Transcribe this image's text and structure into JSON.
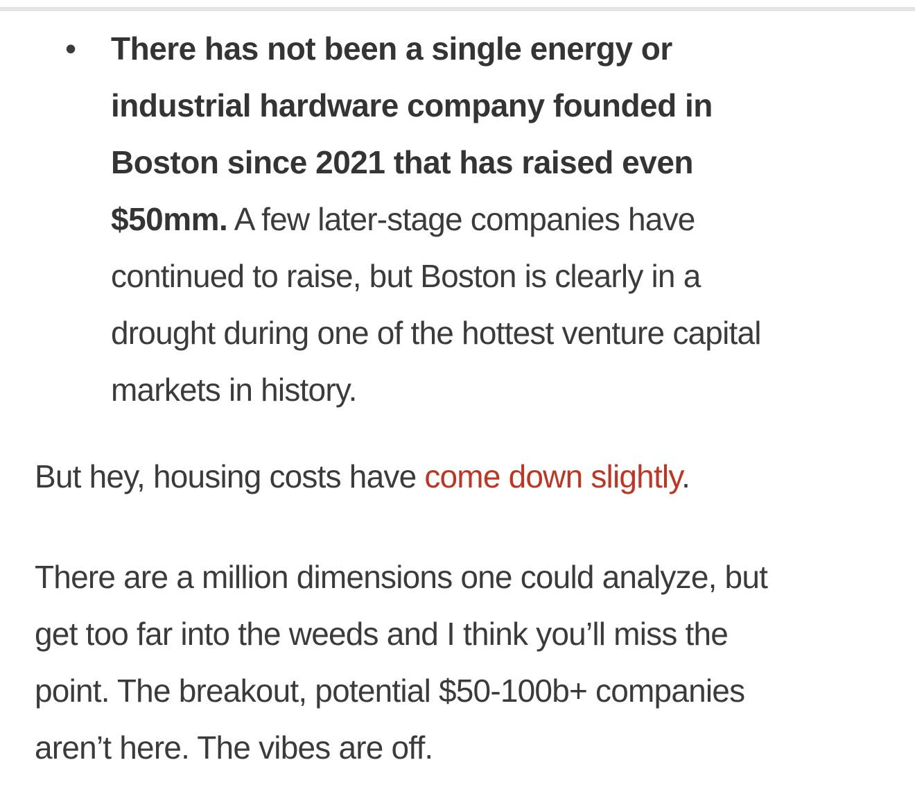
{
  "page": {
    "background_color": "#ffffff",
    "divider_color": "#e5e5e5",
    "text_color": "#3b3b3b",
    "link_color": "#c03522"
  },
  "bullet_item": {
    "marker": "•",
    "bold_lines": [
      "There has not been a single energy or",
      "industrial hardware company founded in",
      "Boston since 2021 that has raised even",
      "$50mm."
    ],
    "regular_lines": [
      " A few later-stage companies have",
      "continued to raise, but Boston is clearly in a",
      "drought during one of the hottest venture capital",
      "markets in history."
    ]
  },
  "housing_paragraph": {
    "before_link": "But hey, housing costs have ",
    "link_text": "come down slightly",
    "after_link": "."
  },
  "analysis_paragraph": {
    "lines": [
      "There are a million dimensions one could analyze, but",
      "get too far into the weeds and I think you’ll miss the",
      "point. The breakout, potential $50-100b+ companies",
      "aren’t here. The vibes are off."
    ]
  }
}
